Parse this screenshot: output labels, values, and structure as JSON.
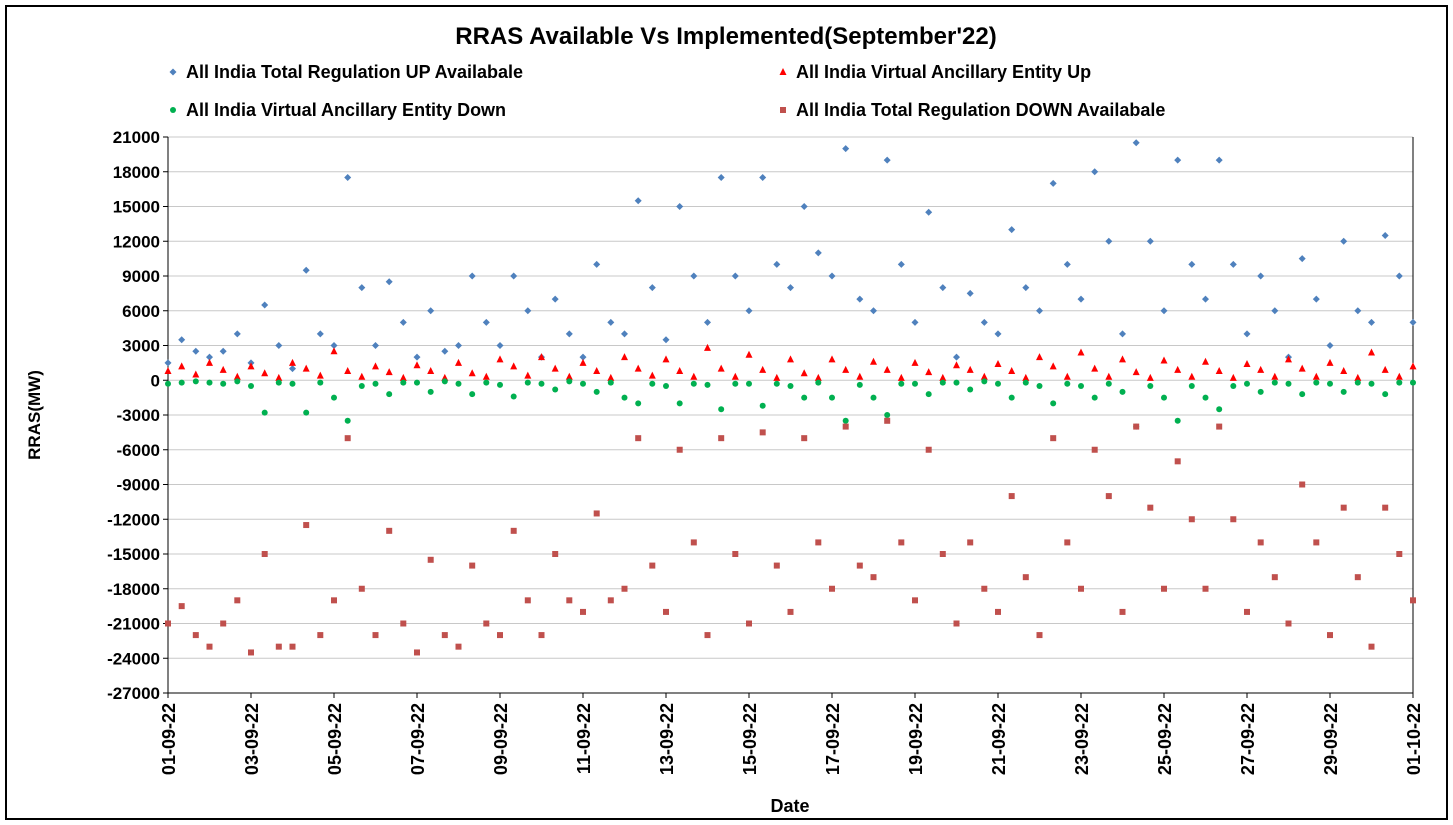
{
  "chart_data": {
    "type": "scatter",
    "title": "RRAS Available Vs Implemented(September'22)",
    "y_label": "RRAS(MW)",
    "x_label": "Date",
    "xlim": [
      0,
      30
    ],
    "ylim": [
      -27000,
      21000
    ],
    "yticks": [
      -27000,
      -24000,
      -21000,
      -18000,
      -15000,
      -12000,
      -9000,
      -6000,
      -3000,
      0,
      3000,
      6000,
      9000,
      12000,
      15000,
      18000,
      21000
    ],
    "xticks": [
      {
        "value": 0,
        "label": "01-09-22"
      },
      {
        "value": 2,
        "label": "03-09-22"
      },
      {
        "value": 4,
        "label": "05-09-22"
      },
      {
        "value": 6,
        "label": "07-09-22"
      },
      {
        "value": 8,
        "label": "09-09-22"
      },
      {
        "value": 10,
        "label": "11-09-22"
      },
      {
        "value": 12,
        "label": "13-09-22"
      },
      {
        "value": 14,
        "label": "15-09-22"
      },
      {
        "value": 16,
        "label": "17-09-22"
      },
      {
        "value": 18,
        "label": "19-09-22"
      },
      {
        "value": 20,
        "label": "21-09-22"
      },
      {
        "value": 22,
        "label": "23-09-22"
      },
      {
        "value": 24,
        "label": "25-09-22"
      },
      {
        "value": 26,
        "label": "27-09-22"
      },
      {
        "value": 28,
        "label": "29-09-22"
      },
      {
        "value": 30,
        "label": "01-10-22"
      }
    ],
    "grid": true,
    "x": [
      0,
      0.33,
      0.67,
      1,
      1.33,
      1.67,
      2,
      2.33,
      2.67,
      3,
      3.33,
      3.67,
      4,
      4.33,
      4.67,
      5,
      5.33,
      5.67,
      6,
      6.33,
      6.67,
      7,
      7.33,
      7.67,
      8,
      8.33,
      8.67,
      9,
      9.33,
      9.67,
      10,
      10.33,
      10.67,
      11,
      11.33,
      11.67,
      12,
      12.33,
      12.67,
      13,
      13.33,
      13.67,
      14,
      14.33,
      14.67,
      15,
      15.33,
      15.67,
      16,
      16.33,
      16.67,
      17,
      17.33,
      17.67,
      18,
      18.33,
      18.67,
      19,
      19.33,
      19.67,
      20,
      20.33,
      20.67,
      21,
      21.33,
      21.67,
      22,
      22.33,
      22.67,
      23,
      23.33,
      23.67,
      24,
      24.33,
      24.67,
      25,
      25.33,
      25.67,
      26,
      26.33,
      26.67,
      27,
      27.33,
      27.67,
      28,
      28.33,
      28.67,
      29,
      29.33,
      29.67,
      30
    ],
    "series": [
      {
        "name": "All India Total Regulation UP Availabale",
        "color": "#4f81bd",
        "marker": "diamond",
        "values": [
          1500,
          3500,
          2500,
          2000,
          2500,
          4000,
          1500,
          6500,
          3000,
          1000,
          9500,
          4000,
          3000,
          17500,
          8000,
          3000,
          8500,
          5000,
          2000,
          6000,
          2500,
          3000,
          9000,
          5000,
          3000,
          9000,
          6000,
          2000,
          7000,
          4000,
          2000,
          10000,
          5000,
          4000,
          15500,
          8000,
          3500,
          15000,
          9000,
          5000,
          17500,
          9000,
          6000,
          17500,
          10000,
          8000,
          15000,
          11000,
          9000,
          20000,
          7000,
          6000,
          19000,
          10000,
          5000,
          14500,
          8000,
          2000,
          7500,
          5000,
          4000,
          13000,
          8000,
          6000,
          17000,
          10000,
          7000,
          18000,
          12000,
          4000,
          20500,
          12000,
          6000,
          19000,
          10000,
          7000,
          19000,
          10000,
          4000,
          9000,
          6000,
          2000,
          10500,
          7000,
          3000,
          12000,
          6000,
          5000,
          12500,
          9000,
          5000
        ]
      },
      {
        "name": "All India Virtual Ancillary Entity Up",
        "color": "#ff0000",
        "marker": "triangle",
        "values": [
          800,
          1200,
          500,
          1500,
          900,
          300,
          1200,
          600,
          200,
          1500,
          1000,
          400,
          2500,
          800,
          300,
          1200,
          700,
          200,
          1300,
          800,
          200,
          1500,
          600,
          300,
          1800,
          1200,
          400,
          2000,
          1000,
          300,
          1500,
          800,
          200,
          2000,
          1000,
          400,
          1800,
          800,
          300,
          2800,
          1000,
          300,
          2200,
          900,
          200,
          1800,
          600,
          200,
          1800,
          900,
          300,
          1600,
          900,
          200,
          1500,
          700,
          200,
          1300,
          900,
          300,
          1400,
          800,
          200,
          2000,
          1200,
          300,
          2400,
          1000,
          300,
          1800,
          700,
          200,
          1700,
          900,
          300,
          1600,
          800,
          200,
          1400,
          900,
          300,
          1800,
          1000,
          300,
          1500,
          800,
          200,
          2400,
          900,
          300,
          1200
        ]
      },
      {
        "name": "All India Virtual Ancillary Entity Down",
        "color": "#00b050",
        "marker": "circle",
        "values": [
          -300,
          -200,
          -100,
          -200,
          -300,
          -100,
          -500,
          -2800,
          -200,
          -300,
          -2800,
          -200,
          -1500,
          -3500,
          -500,
          -300,
          -1200,
          -200,
          -200,
          -1000,
          -100,
          -300,
          -1200,
          -200,
          -400,
          -1400,
          -200,
          -300,
          -800,
          -100,
          -300,
          -1000,
          -200,
          -1500,
          -2000,
          -300,
          -500,
          -2000,
          -300,
          -400,
          -2500,
          -300,
          -300,
          -2200,
          -300,
          -500,
          -1500,
          -200,
          -1500,
          -3500,
          -400,
          -1500,
          -3000,
          -300,
          -300,
          -1200,
          -200,
          -200,
          -800,
          -100,
          -300,
          -1500,
          -200,
          -500,
          -2000,
          -300,
          -500,
          -1500,
          -300,
          -1000,
          -4000,
          -500,
          -1500,
          -3500,
          -500,
          -1500,
          -2500,
          -500,
          -300,
          -1000,
          -200,
          -300,
          -1200,
          -200,
          -300,
          -1000,
          -200,
          -300,
          -1200,
          -200,
          -200
        ]
      },
      {
        "name": "All India Total  Regulation DOWN Availabale",
        "color": "#c0504d",
        "marker": "square",
        "values": [
          -21000,
          -19500,
          -22000,
          -23000,
          -21000,
          -19000,
          -23500,
          -15000,
          -23000,
          -23000,
          -12500,
          -22000,
          -19000,
          -5000,
          -18000,
          -22000,
          -13000,
          -21000,
          -23500,
          -15500,
          -22000,
          -23000,
          -16000,
          -21000,
          -22000,
          -13000,
          -19000,
          -22000,
          -15000,
          -19000,
          -20000,
          -11500,
          -19000,
          -18000,
          -5000,
          -16000,
          -20000,
          -6000,
          -14000,
          -22000,
          -5000,
          -15000,
          -21000,
          -4500,
          -16000,
          -20000,
          -5000,
          -14000,
          -18000,
          -4000,
          -16000,
          -17000,
          -3500,
          -14000,
          -19000,
          -6000,
          -15000,
          -21000,
          -14000,
          -18000,
          -20000,
          -10000,
          -17000,
          -22000,
          -5000,
          -14000,
          -18000,
          -6000,
          -10000,
          -20000,
          -4000,
          -11000,
          -18000,
          -7000,
          -12000,
          -18000,
          -4000,
          -12000,
          -20000,
          -14000,
          -17000,
          -21000,
          -9000,
          -14000,
          -22000,
          -11000,
          -17000,
          -23000,
          -11000,
          -15000,
          -19000
        ]
      }
    ]
  }
}
